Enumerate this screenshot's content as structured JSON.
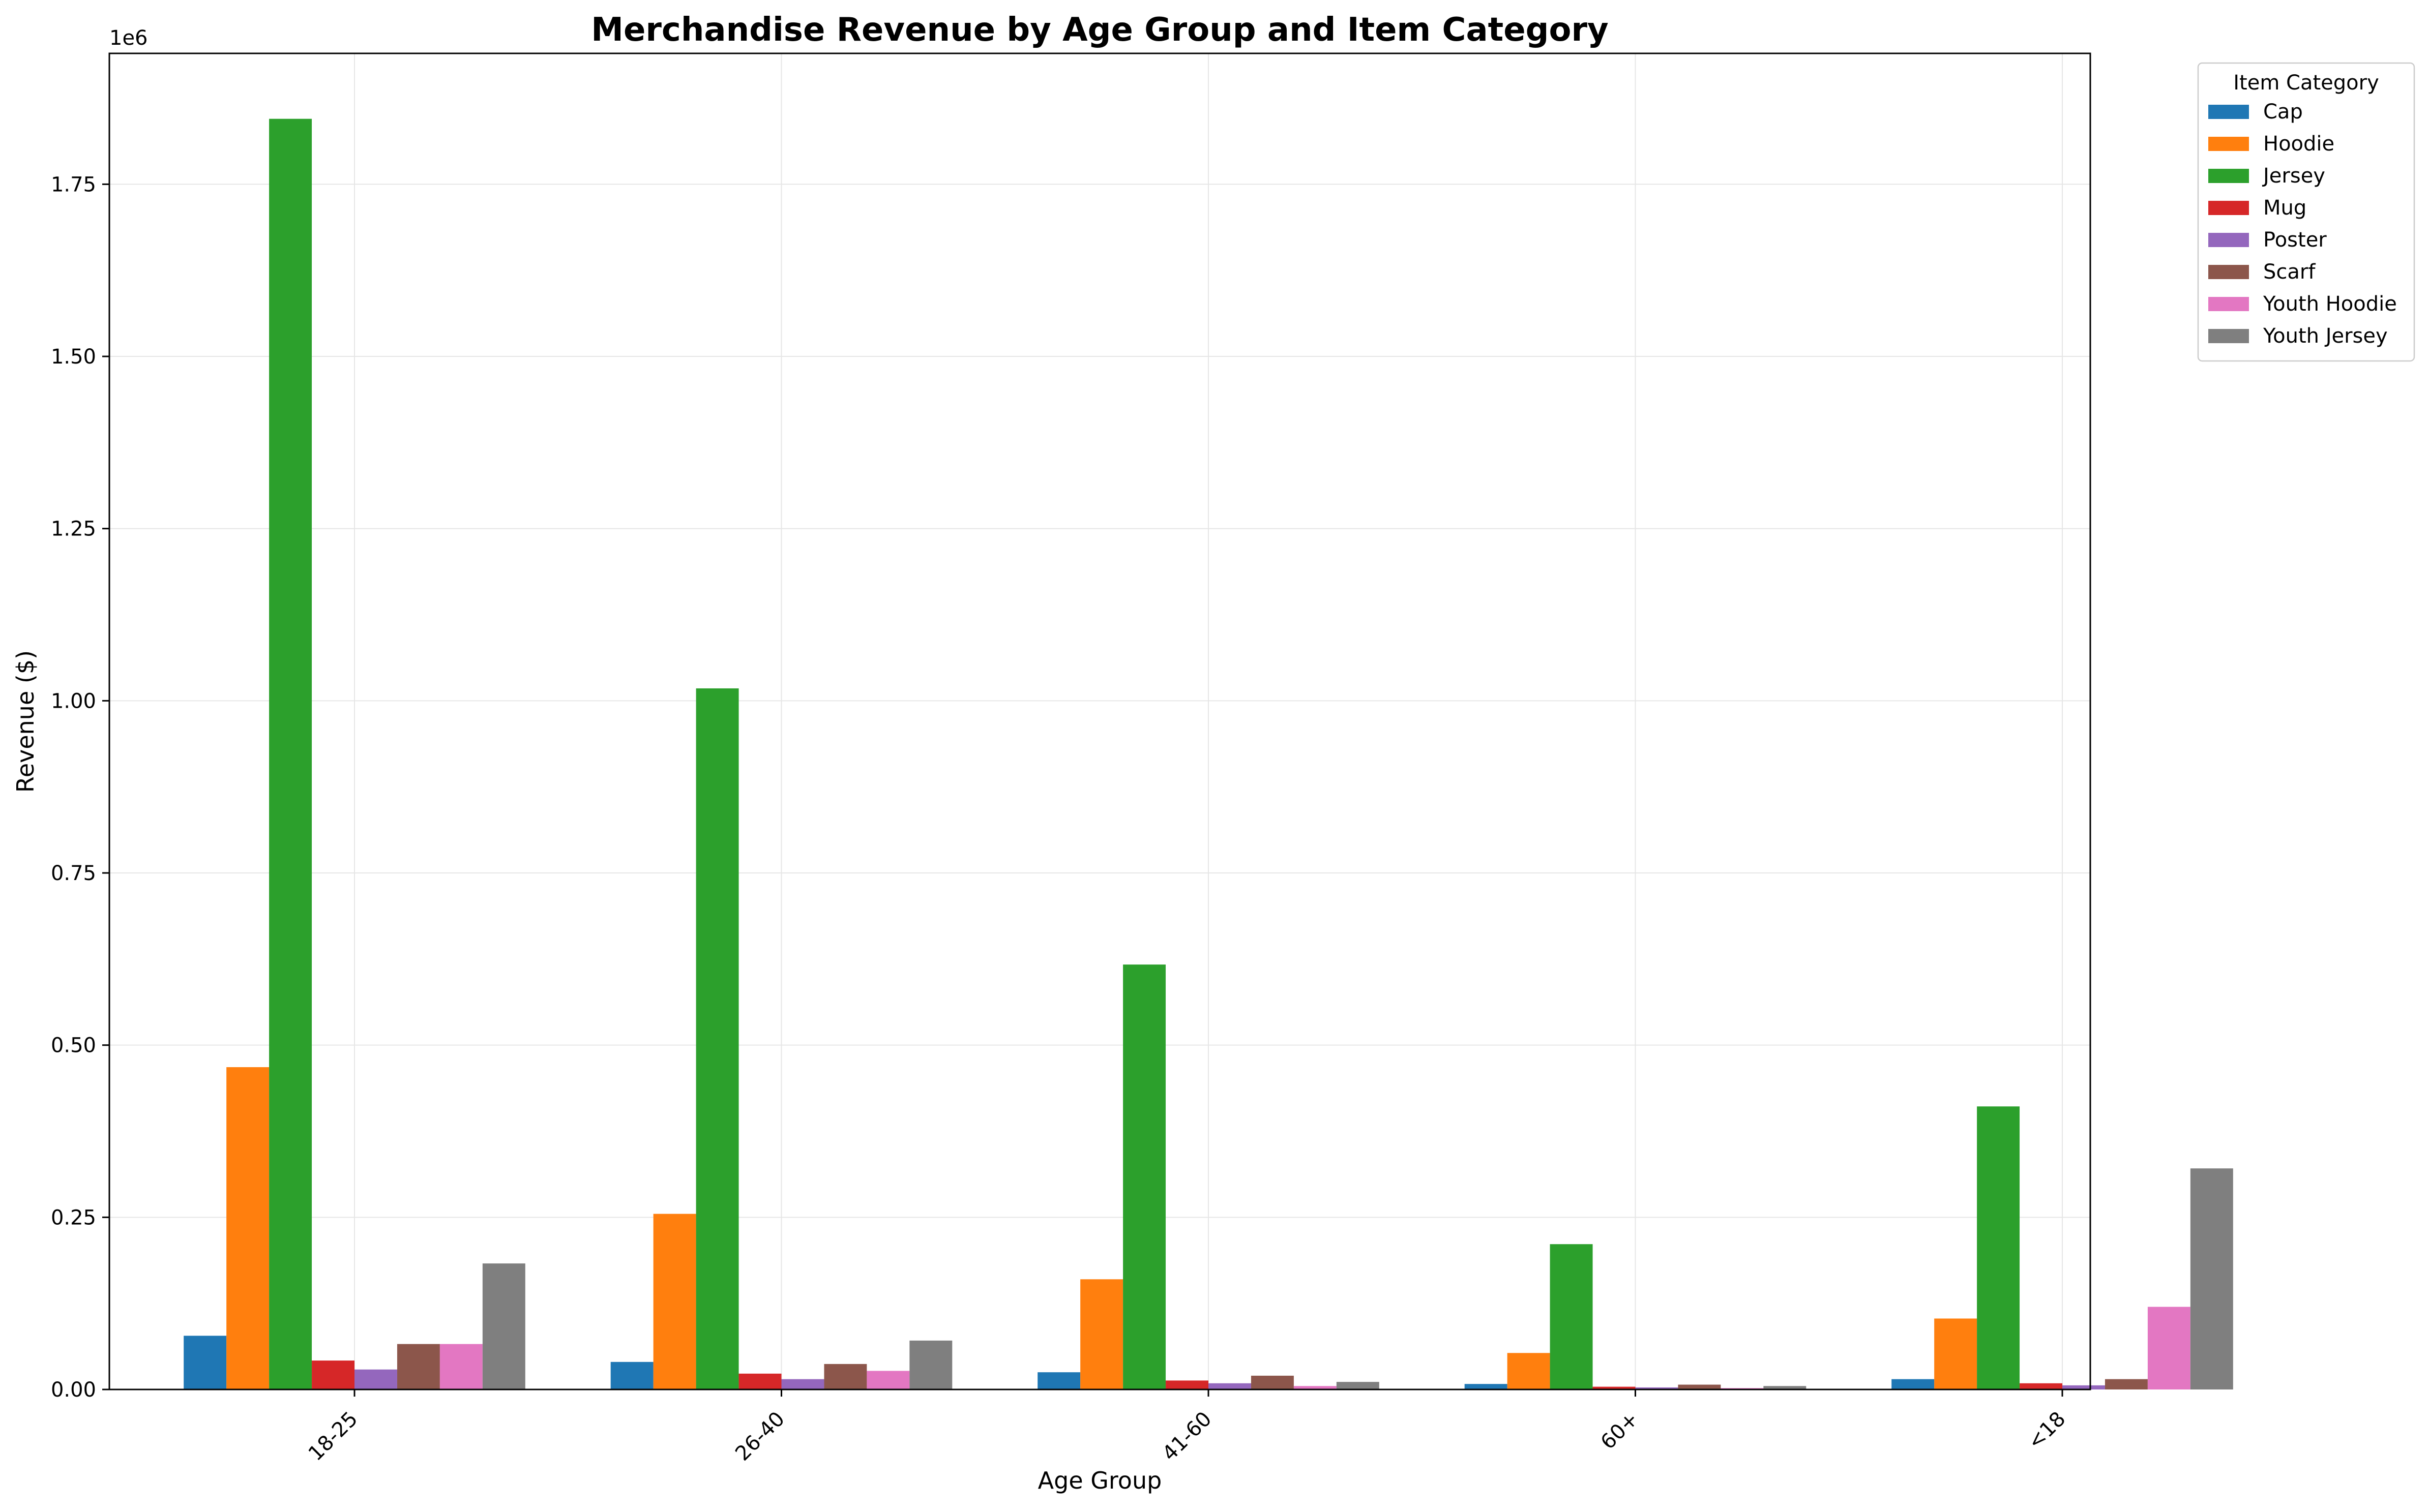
{
  "chart_data": {
    "type": "bar",
    "title": "Merchandise Revenue by Age Group and Item Category",
    "xlabel": "Age Group",
    "ylabel": "Revenue ($)",
    "y_offset_label": "1e6",
    "ylim": [
      0,
      1940000
    ],
    "yticks": [
      0,
      250000,
      500000,
      750000,
      1000000,
      1250000,
      1500000,
      1750000
    ],
    "ytick_labels": [
      "0.00",
      "0.25",
      "0.50",
      "0.75",
      "1.00",
      "1.25",
      "1.50",
      "1.75"
    ],
    "grid": true,
    "legend": {
      "title": "Item Category",
      "placement": "outside-top-right"
    },
    "categories": [
      "18-25",
      "26-40",
      "41-60",
      "60+",
      "<18"
    ],
    "series": [
      {
        "name": "Cap",
        "color": "#1f77b4",
        "values": [
          78000,
          40000,
          25000,
          8000,
          15000
        ]
      },
      {
        "name": "Hoodie",
        "color": "#ff7f0e",
        "values": [
          468000,
          255000,
          160000,
          53000,
          103000
        ]
      },
      {
        "name": "Jersey",
        "color": "#2ca02c",
        "values": [
          1845000,
          1018000,
          617000,
          211000,
          411000
        ]
      },
      {
        "name": "Mug",
        "color": "#d62728",
        "values": [
          42000,
          23000,
          13000,
          4000,
          9000
        ]
      },
      {
        "name": "Poster",
        "color": "#9467bd",
        "values": [
          29000,
          15000,
          9000,
          3000,
          6000
        ]
      },
      {
        "name": "Scarf",
        "color": "#8c564b",
        "values": [
          66000,
          37000,
          20000,
          7000,
          15000
        ]
      },
      {
        "name": "Youth Hoodie",
        "color": "#e377c2",
        "values": [
          66000,
          27000,
          5000,
          2000,
          120000
        ]
      },
      {
        "name": "Youth Jersey",
        "color": "#7f7f7f",
        "values": [
          183000,
          71000,
          11000,
          5000,
          321000
        ]
      }
    ]
  }
}
